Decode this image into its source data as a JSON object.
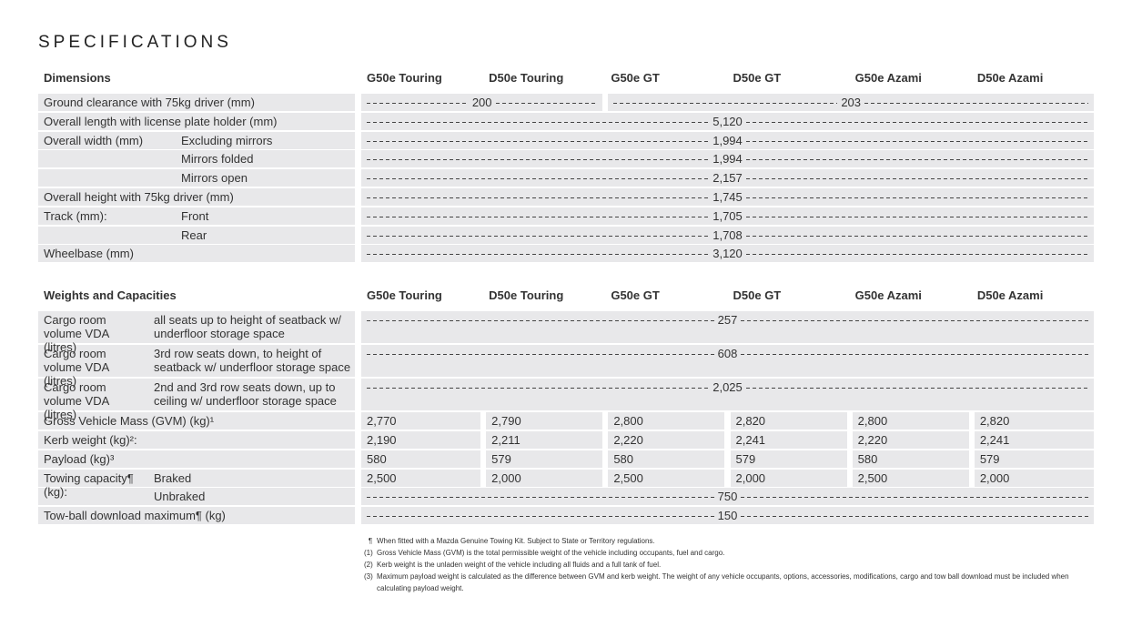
{
  "title": "SPECIFICATIONS",
  "tables": [
    {
      "heading": "Dimensions",
      "columns": [
        "G50e Touring",
        "D50e Touring",
        "G50e GT",
        "D50e GT",
        "G50e Azami",
        "D50e Azami"
      ],
      "rows": [
        {
          "label": "Ground clearance with 75kg driver (mm)",
          "values": [
            "200",
            "203"
          ]
        },
        {
          "label": "Overall length with license plate holder (mm)",
          "values": [
            "5,120"
          ]
        },
        {
          "label": "Overall width (mm)",
          "sublabel": "Excluding mirrors",
          "values": [
            "1,994"
          ]
        },
        {
          "sublabel": "Mirrors folded",
          "values": [
            "1,994"
          ]
        },
        {
          "sublabel": "Mirrors open",
          "values": [
            "2,157"
          ]
        },
        {
          "label": "Overall height with 75kg driver (mm)",
          "values": [
            "1,745"
          ]
        },
        {
          "label": "Track (mm):",
          "sublabel": "Front",
          "values": [
            "1,705"
          ]
        },
        {
          "sublabel": "Rear",
          "values": [
            "1,708"
          ]
        },
        {
          "label": "Wheelbase (mm)",
          "values": [
            "3,120"
          ]
        }
      ]
    },
    {
      "heading": "Weights and Capacities",
      "columns": [
        "G50e Touring",
        "D50e Touring",
        "G50e GT",
        "D50e GT",
        "G50e Azami",
        "D50e Azami"
      ],
      "rows": [
        {
          "label": "Cargo room volume VDA (litres)",
          "sublabel": "all seats up to height of seatback w/ underfloor storage space",
          "values": [
            "257"
          ]
        },
        {
          "label": "Cargo room volume VDA (litres)",
          "sublabel": "3rd row seats down, to height of seatback w/ underfloor storage space",
          "values": [
            "608"
          ]
        },
        {
          "label": "Cargo room volume VDA (litres)",
          "sublabel": "2nd and 3rd row seats down, up to ceiling w/ underfloor storage space",
          "values": [
            "2,025"
          ]
        },
        {
          "label": "Gross Vehicle Mass (GVM) (kg)¹",
          "values": [
            "2,770",
            "2,790",
            "2,800",
            "2,820",
            "2,800",
            "2,820"
          ]
        },
        {
          "label": "Kerb weight (kg)²:",
          "values": [
            "2,190",
            "2,211",
            "2,220",
            "2,241",
            "2,220",
            "2,241"
          ]
        },
        {
          "label": "Payload (kg)³",
          "values": [
            "580",
            "579",
            "580",
            "579",
            "580",
            "579"
          ]
        },
        {
          "label": "Towing capacity¶ (kg):",
          "sublabel": "Braked",
          "values": [
            "2,500",
            "2,000",
            "2,500",
            "2,000",
            "2,500",
            "2,000"
          ]
        },
        {
          "sublabel": "Unbraked",
          "values": [
            "750"
          ]
        },
        {
          "label": "Tow-ball download maximum¶ (kg)",
          "values": [
            "150"
          ]
        }
      ]
    }
  ],
  "footnotes": [
    {
      "mark": "¶",
      "text": "When fitted with a Mazda Genuine Towing Kit. Subject to State or Territory regulations."
    },
    {
      "mark": "(1)",
      "text": "Gross Vehicle Mass (GVM) is the total permissible weight of the vehicle including occupants, fuel and cargo."
    },
    {
      "mark": "(2)",
      "text": "Kerb weight is the unladen weight of the vehicle including all fluids and a full tank of fuel."
    },
    {
      "mark": "(3)",
      "text": "Maximum payload weight is calculated as the difference between GVM and kerb weight. The weight of any vehicle occupants, options, accessories, modifications, cargo and tow ball download must be included when calculating payload weight."
    }
  ]
}
